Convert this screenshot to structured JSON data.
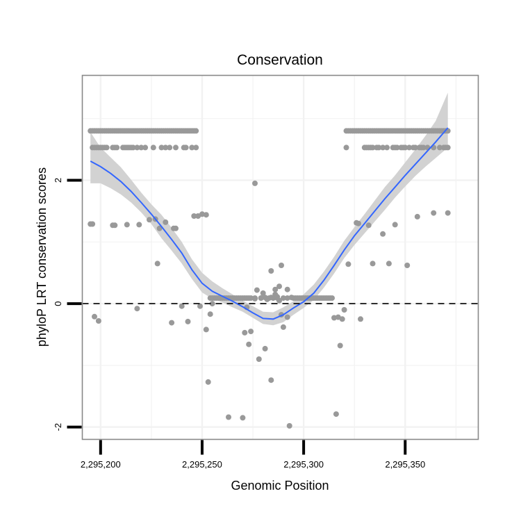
{
  "chart_data": {
    "type": "scatter",
    "title": "Conservation",
    "xlabel": "Genomic Position",
    "ylabel": "phyloP LRT conservation scores",
    "xlim": [
      2295191,
      2295386
    ],
    "ylim": [
      -2.2,
      3.7
    ],
    "x_ticks": [
      {
        "value": 2295200,
        "label": "2,295,200"
      },
      {
        "value": 2295250,
        "label": "2,295,250"
      },
      {
        "value": 2295300,
        "label": "2,295,300"
      },
      {
        "value": 2295350,
        "label": "2,295,350"
      }
    ],
    "y_ticks": [
      {
        "value": -2,
        "label": "-2"
      },
      {
        "value": 0,
        "label": "0"
      },
      {
        "value": 2,
        "label": "2"
      }
    ],
    "grid": true,
    "reference_line": {
      "y": 0,
      "style": "dashed",
      "color": "#000000"
    },
    "colors": {
      "points": "#999999",
      "smooth_line": "#3366FF",
      "confidence_band": "#D2D2D2",
      "grid": "#F2F2F2",
      "panel_border": "#888888"
    },
    "series": [
      {
        "kind": "points",
        "x": [
          2295195,
          2295196,
          2295197,
          2295198,
          2295199,
          2295200,
          2295201,
          2295202,
          2295203,
          2295204,
          2295205,
          2295206,
          2295207,
          2295208,
          2295209,
          2295210,
          2295211,
          2295212,
          2295213,
          2295214,
          2295215,
          2295216,
          2295217,
          2295218,
          2295219,
          2295220,
          2295221,
          2295222,
          2295223,
          2295224,
          2295225,
          2295226,
          2295227,
          2295228,
          2295229,
          2295230,
          2295231,
          2295232,
          2295233,
          2295234,
          2295235,
          2295236,
          2295237,
          2295238,
          2295239,
          2295240,
          2295241,
          2295242,
          2295243,
          2295244,
          2295245,
          2295246,
          2295247,
          2295321,
          2295322,
          2295323,
          2295324,
          2295325,
          2295326,
          2295327,
          2295328,
          2295329,
          2295330,
          2295331,
          2295332,
          2295333,
          2295334,
          2295335,
          2295336,
          2295337,
          2295338,
          2295339,
          2295340,
          2295341,
          2295342,
          2295343,
          2295344,
          2295345,
          2295346,
          2295347,
          2295348,
          2295349,
          2295350,
          2295351,
          2295352,
          2295353,
          2295354,
          2295355,
          2295356,
          2295357,
          2295358,
          2295359,
          2295360,
          2295361,
          2295362,
          2295363,
          2295364,
          2295365,
          2295366,
          2295367,
          2295368,
          2295369,
          2295370,
          2295371,
          2295196,
          2295197,
          2295198,
          2295199,
          2295200,
          2295201,
          2295202,
          2295203,
          2295206,
          2295207,
          2295208,
          2295211,
          2295212,
          2295213,
          2295214,
          2295215,
          2295216,
          2295218,
          2295220,
          2295222,
          2295226,
          2295230,
          2295232,
          2295234,
          2295237,
          2295241,
          2295242,
          2295245,
          2295247,
          2295321,
          2295330,
          2295331,
          2295332,
          2295333,
          2295334,
          2295336,
          2295337,
          2295339,
          2295341,
          2295344,
          2295345,
          2295346,
          2295348,
          2295349,
          2295350,
          2295352,
          2295354,
          2295355,
          2295357,
          2295358,
          2295359,
          2295361,
          2295364,
          2295367,
          2295369,
          2295370,
          2295371,
          2295254,
          2295255,
          2295256,
          2295257,
          2295258,
          2295259,
          2295260,
          2295261,
          2295262,
          2295263,
          2295264,
          2295265,
          2295266,
          2295267,
          2295268,
          2295269,
          2295270,
          2295271,
          2295272,
          2295273,
          2295274,
          2295276,
          2295283,
          2295285,
          2295287,
          2295290,
          2295292,
          2295295,
          2295296,
          2295297,
          2295298,
          2295299,
          2295300,
          2295301,
          2295302,
          2295303,
          2295304,
          2295305,
          2295306,
          2295307,
          2295308,
          2295309,
          2295310,
          2295311,
          2295312,
          2295313,
          2295314,
          2295196,
          2295207,
          2295213,
          2295224,
          2295237,
          2295248,
          2295195,
          2295206,
          2295227,
          2295229,
          2295236,
          2295246,
          2295252,
          2295327,
          2295332,
          2295339,
          2295345,
          2295356,
          2295364,
          2295371,
          2295219,
          2295232,
          2295250,
          2295322,
          2295334,
          2295342,
          2295351,
          2295326,
          2295197,
          2295199,
          2295218,
          2295228,
          2295235,
          2295240,
          2295243,
          2295249,
          2295252,
          2295254,
          2295255,
          2295272,
          2295274,
          2295276,
          2295277,
          2295279,
          2295280,
          2295281,
          2295282,
          2295284,
          2295286,
          2295287,
          2295288,
          2295289,
          2295290,
          2295292,
          2295294,
          2295315,
          2295317,
          2295318,
          2295320,
          2295328,
          2295276,
          2295273,
          2295292,
          2295286,
          2295289,
          2295284,
          2295278,
          2295288,
          2295271,
          2295281,
          2295279,
          2295253,
          2295284,
          2295263,
          2295270,
          2295319,
          2295316,
          2295293
        ],
        "y": [
          2.8,
          2.8,
          2.8,
          2.8,
          2.8,
          2.8,
          2.8,
          2.8,
          2.8,
          2.8,
          2.8,
          2.8,
          2.8,
          2.8,
          2.8,
          2.8,
          2.8,
          2.8,
          2.8,
          2.8,
          2.8,
          2.8,
          2.8,
          2.8,
          2.8,
          2.8,
          2.8,
          2.8,
          2.8,
          2.8,
          2.8,
          2.8,
          2.8,
          2.8,
          2.8,
          2.8,
          2.8,
          2.8,
          2.8,
          2.8,
          2.8,
          2.8,
          2.8,
          2.8,
          2.8,
          2.8,
          2.8,
          2.8,
          2.8,
          2.8,
          2.8,
          2.8,
          2.8,
          2.8,
          2.8,
          2.8,
          2.8,
          2.8,
          2.8,
          2.8,
          2.8,
          2.8,
          2.8,
          2.8,
          2.8,
          2.8,
          2.8,
          2.8,
          2.8,
          2.8,
          2.8,
          2.8,
          2.8,
          2.8,
          2.8,
          2.8,
          2.8,
          2.8,
          2.8,
          2.8,
          2.8,
          2.8,
          2.8,
          2.8,
          2.8,
          2.8,
          2.8,
          2.8,
          2.8,
          2.8,
          2.8,
          2.8,
          2.8,
          2.8,
          2.8,
          2.8,
          2.8,
          2.8,
          2.8,
          2.8,
          2.8,
          2.8,
          2.8,
          2.8,
          2.53,
          2.53,
          2.53,
          2.53,
          2.53,
          2.53,
          2.53,
          2.53,
          2.53,
          2.53,
          2.53,
          2.53,
          2.53,
          2.53,
          2.53,
          2.53,
          2.53,
          2.53,
          2.53,
          2.53,
          2.53,
          2.53,
          2.53,
          2.53,
          2.53,
          2.53,
          2.53,
          2.53,
          2.53,
          2.53,
          2.53,
          2.53,
          2.53,
          2.53,
          2.53,
          2.53,
          2.53,
          2.53,
          2.53,
          2.53,
          2.53,
          2.53,
          2.53,
          2.53,
          2.53,
          2.53,
          2.53,
          2.53,
          2.53,
          2.53,
          2.53,
          2.53,
          2.53,
          2.53,
          2.53,
          2.53,
          2.53,
          0.09,
          0.09,
          0.09,
          0.09,
          0.09,
          0.09,
          0.09,
          0.09,
          0.09,
          0.09,
          0.09,
          0.09,
          0.09,
          0.09,
          0.09,
          0.09,
          0.09,
          0.09,
          0.09,
          0.09,
          0.09,
          0.09,
          0.09,
          0.09,
          0.09,
          0.09,
          0.09,
          0.09,
          0.09,
          0.09,
          0.09,
          0.09,
          0.09,
          0.09,
          0.09,
          0.09,
          0.09,
          0.09,
          0.09,
          0.09,
          0.09,
          0.09,
          0.09,
          0.09,
          0.09,
          0.09,
          0.09,
          1.29,
          1.27,
          1.28,
          1.36,
          1.22,
          1.42,
          1.29,
          1.27,
          1.37,
          1.22,
          1.22,
          1.42,
          1.44,
          1.3,
          1.27,
          1.13,
          1.28,
          1.41,
          1.47,
          1.47,
          1.28,
          1.32,
          1.45,
          0.64,
          0.65,
          0.65,
          0.62,
          1.31,
          -0.21,
          -0.28,
          -0.08,
          0.65,
          -0.31,
          -0.04,
          -0.29,
          -0.04,
          -0.42,
          -0.17,
          0.0,
          -0.06,
          -0.45,
          0.08,
          0.22,
          0.09,
          0.17,
          0.1,
          0.07,
          0.53,
          0.15,
          0.11,
          0.28,
          -0.18,
          -0.38,
          0.23,
          0.1,
          -0.23,
          -0.22,
          -0.68,
          -0.1,
          -0.25,
          1.95,
          -0.66,
          -0.22,
          0.23,
          0.62,
          -1.24,
          -0.9,
          0.05,
          -0.47,
          -0.73,
          0.09,
          -1.27,
          0.1,
          -1.84,
          -1.85,
          -0.25,
          -1.79,
          -1.98
        ],
        "color": "#999999"
      },
      {
        "kind": "smooth",
        "x": [
          2295195,
          2295200,
          2295205,
          2295210,
          2295215,
          2295220,
          2295225,
          2295230,
          2295235,
          2295240,
          2295245,
          2295250,
          2295255,
          2295260,
          2295265,
          2295270,
          2295275,
          2295280,
          2295285,
          2295290,
          2295295,
          2295300,
          2295305,
          2295310,
          2295315,
          2295320,
          2295325,
          2295330,
          2295335,
          2295340,
          2295345,
          2295350,
          2295355,
          2295360,
          2295365,
          2295371
        ],
        "y": [
          2.31,
          2.22,
          2.11,
          1.98,
          1.82,
          1.64,
          1.45,
          1.25,
          1.04,
          0.82,
          0.55,
          0.33,
          0.2,
          0.12,
          0.04,
          -0.05,
          -0.15,
          -0.24,
          -0.25,
          -0.18,
          -0.07,
          0.03,
          0.17,
          0.38,
          0.62,
          0.87,
          1.1,
          1.3,
          1.5,
          1.7,
          1.89,
          2.08,
          2.26,
          2.44,
          2.62,
          2.85
        ],
        "lower": [
          1.95,
          1.95,
          1.87,
          1.77,
          1.64,
          1.48,
          1.29,
          1.06,
          0.86,
          0.65,
          0.4,
          0.18,
          0.08,
          0.02,
          -0.06,
          -0.13,
          -0.23,
          -0.33,
          -0.35,
          -0.3,
          -0.18,
          -0.07,
          0.06,
          0.26,
          0.49,
          0.74,
          0.95,
          1.14,
          1.33,
          1.52,
          1.72,
          1.9,
          2.07,
          2.22,
          2.36,
          2.53
        ],
        "upper": [
          2.78,
          2.53,
          2.37,
          2.21,
          2.01,
          1.8,
          1.61,
          1.44,
          1.23,
          1.0,
          0.72,
          0.5,
          0.36,
          0.25,
          0.15,
          0.05,
          -0.04,
          -0.13,
          -0.14,
          -0.06,
          0.04,
          0.15,
          0.31,
          0.52,
          0.76,
          1.02,
          1.24,
          1.45,
          1.67,
          1.89,
          2.08,
          2.29,
          2.5,
          2.72,
          2.96,
          3.42
        ],
        "color": "#3366FF",
        "band_color": "#D2D2D2"
      }
    ]
  }
}
